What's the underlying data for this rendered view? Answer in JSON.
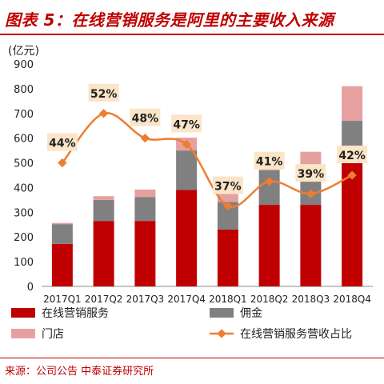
{
  "title": "图表 5：在线营销服务是阿里的主要收入来源",
  "source": "来源：公司公告  中泰证券研究所",
  "colors": {
    "online_marketing": "#c00000",
    "commission": "#808080",
    "store": "#e6a0a0",
    "ratio_line": "#ed7d31",
    "ratio_label_bg": "#fbe5c8",
    "accent": "#c00000"
  },
  "chart_data": {
    "type": "bar",
    "stacked": true,
    "y_unit_label": "(亿元)",
    "ylim": [
      0,
      900
    ],
    "yticks": [
      0,
      100,
      200,
      300,
      400,
      500,
      600,
      700,
      800,
      900
    ],
    "categories": [
      "2017Q1",
      "2017Q2",
      "2017Q3",
      "2017Q4",
      "2018Q1",
      "2018Q2",
      "2018Q3",
      "2018Q4"
    ],
    "series": [
      {
        "name": "在线营销服务",
        "type": "bar",
        "values": [
          172,
          265,
          265,
          390,
          230,
          330,
          330,
          500
        ]
      },
      {
        "name": "佣金",
        "type": "bar",
        "values": [
          80,
          85,
          97,
          160,
          112,
          140,
          130,
          170
        ]
      },
      {
        "name": "门店",
        "type": "bar",
        "values": [
          5,
          15,
          30,
          52,
          60,
          70,
          85,
          140
        ]
      },
      {
        "name": "在线营销服务营收占比",
        "type": "line",
        "labels": [
          "44%",
          "52%",
          "48%",
          "47%",
          "37%",
          "41%",
          "39%",
          "42%"
        ],
        "values": [
          44,
          52,
          48,
          47,
          37,
          41,
          39,
          42
        ]
      }
    ],
    "legend_position": "bottom",
    "grid": false
  }
}
